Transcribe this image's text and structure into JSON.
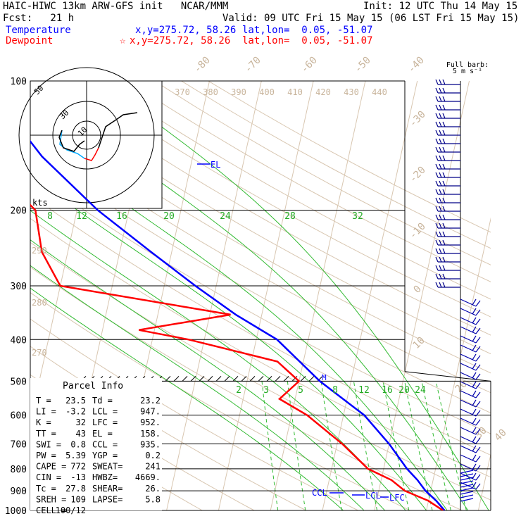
{
  "header": {
    "model_line": "HAIC-HIWC 13km ARW-GFS init   NCAR/MMM",
    "init_line": "Init: 12 UTC Thu 14 May 15",
    "fcst_line": "Fcst:   21 h",
    "valid_line": "Valid: 09 UTC Fri 15 May 15 (06 LST Fri 15 May 15)",
    "temp_label": "Temperature",
    "temp_xy": "x,y=275.72, 58.26",
    "temp_latlon": "lat,lon=  0.05, -51.07",
    "dew_label": "Dewpoint",
    "dew_marker": "☆",
    "dew_xy": "x,y=275.72, 58.26",
    "dew_latlon": "lat,lon=  0.05, -51.07"
  },
  "barb_legend": {
    "line1": "Full barb:",
    "line2": "5 m s⁻¹"
  },
  "hodograph": {
    "units_label": "kts",
    "ring_labels": [
      "10",
      "30",
      "50"
    ]
  },
  "parcel_info": {
    "title": "Parcel Info",
    "rows": [
      [
        "T  =",
        "23.5",
        "Td =",
        "23.2"
      ],
      [
        "LI =",
        "-3.2",
        "LCL =",
        "947."
      ],
      [
        "K  =",
        "32",
        "LFC =",
        "952."
      ],
      [
        "TT =",
        "43",
        "EL  =",
        "158."
      ],
      [
        "SWI =",
        "0.8",
        "CCL =",
        "935."
      ],
      [
        "PW =",
        "5.39",
        "YGP =",
        "0.2"
      ],
      [
        "CAPE =",
        "772",
        "SWEAT=",
        "241"
      ],
      [
        "CIN =",
        "-13",
        "HWBZ=",
        "4669."
      ],
      [
        "Tc =",
        "27.8",
        "SHEAR=",
        "26."
      ],
      [
        "SREH =",
        "109",
        "LAPSE=",
        "5.8"
      ],
      [
        "CELL =",
        "100/12",
        "",
        ""
      ]
    ]
  },
  "level_labels": {
    "el": "EL",
    "ccl": "CCL",
    "lcl": "LCL",
    "lfc": "LFC",
    "m": "M"
  },
  "chart_data": {
    "type": "line",
    "title": "",
    "ylabel": "",
    "xlabel": "",
    "y_scale": "log-pressure",
    "ylim": [
      1000,
      100
    ],
    "pressure_ticks": [
      100,
      200,
      300,
      400,
      500,
      600,
      700,
      800,
      900,
      1000
    ],
    "isotherm_labels": [
      {
        "text": "-80",
        "color": "#c8b49b"
      },
      {
        "text": "-70",
        "color": "#c8b49b"
      },
      {
        "text": "-60",
        "color": "#c8b49b"
      },
      {
        "text": "-50",
        "color": "#c8b49b"
      },
      {
        "text": "-40",
        "color": "#c8b49b"
      },
      {
        "text": "-30",
        "color": "#c8b49b"
      },
      {
        "text": "-20",
        "color": "#c8b49b"
      },
      {
        "text": "-10",
        "color": "#c8b49b"
      },
      {
        "text": "0",
        "color": "#c8b49b"
      },
      {
        "text": "10",
        "color": "#c8b49b"
      },
      {
        "text": "20",
        "color": "#c8b49b"
      },
      {
        "text": "30",
        "color": "#c8b49b"
      },
      {
        "text": "40",
        "color": "#c8b49b"
      }
    ],
    "theta_labels_top": [
      "370",
      "380",
      "390",
      "400",
      "410",
      "420",
      "430",
      "440"
    ],
    "theta_labels_left": [
      "290",
      "280",
      "270"
    ],
    "thetae_labels": [
      "8",
      "12",
      "16",
      "20",
      "24",
      "28",
      "32"
    ],
    "mixing_ratio_labels": [
      "2",
      "3",
      "5",
      "8",
      "12",
      "16",
      "20",
      "24"
    ],
    "series": [
      {
        "name": "Temperature",
        "color": "#0000ff",
        "points": [
          [
            1000,
            23.5
          ],
          [
            950,
            21.5
          ],
          [
            900,
            19
          ],
          [
            850,
            17
          ],
          [
            800,
            14.5
          ],
          [
            700,
            10
          ],
          [
            600,
            4
          ],
          [
            500,
            -6
          ],
          [
            400,
            -16
          ],
          [
            350,
            -25
          ],
          [
            300,
            -34
          ],
          [
            250,
            -44
          ],
          [
            200,
            -56
          ],
          [
            150,
            -69
          ],
          [
            120,
            -77
          ],
          [
            100,
            -80
          ]
        ]
      },
      {
        "name": "Dewpoint",
        "color": "#ff0000",
        "points": [
          [
            1000,
            23.2
          ],
          [
            950,
            20
          ],
          [
            900,
            15
          ],
          [
            850,
            12
          ],
          [
            800,
            7
          ],
          [
            700,
            1
          ],
          [
            600,
            -7
          ],
          [
            550,
            -13
          ],
          [
            500,
            -10
          ],
          [
            450,
            -15
          ],
          [
            400,
            -33
          ],
          [
            380,
            -43
          ],
          [
            350,
            -26
          ],
          [
            300,
            -60
          ],
          [
            250,
            -65
          ],
          [
            200,
            -68
          ],
          [
            170,
            -75
          ],
          [
            130,
            -86
          ],
          [
            110,
            -88
          ],
          [
            100,
            -84
          ]
        ]
      }
    ]
  }
}
